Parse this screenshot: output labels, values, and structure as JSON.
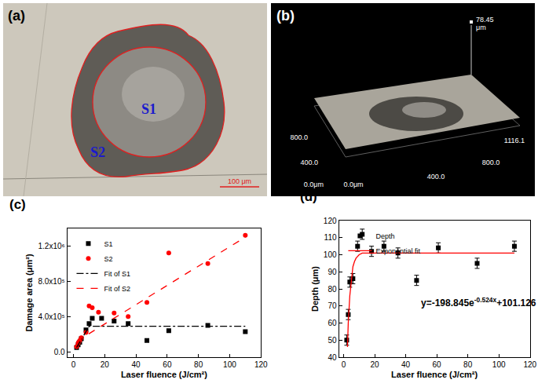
{
  "image_panels": [
    {
      "label": "(a)",
      "regions": [
        "S1",
        "S2"
      ],
      "scale_bar": "100 μm"
    },
    {
      "label": "(b)",
      "height_value": "78.45",
      "height_unit": "μm",
      "axis_labels": [
        "800.0",
        "400.0",
        "0.0μm",
        "0.0μm",
        "400.0",
        "800.0",
        "1116.1"
      ]
    }
  ],
  "chart_data": [
    {
      "type": "scatter",
      "label": "(c)",
      "x_label": "Laser fluence (J/cm²)",
      "y_label": "Damage area (μm²)",
      "xlim": [
        -4,
        120
      ],
      "xticks": [
        0,
        20,
        40,
        60,
        80,
        100,
        120
      ],
      "ylim": [
        -60000,
        1400000
      ],
      "yticks": [
        {
          "value": 0,
          "label": "0.0"
        },
        {
          "value": 400000,
          "label": "4.0x10⁵"
        },
        {
          "value": 800000,
          "label": "8.0x10⁵"
        },
        {
          "value": 1200000,
          "label": "1.2x10⁶"
        }
      ],
      "grid": false,
      "legend": "upper left",
      "series": [
        {
          "name": "S1",
          "type": "scatter",
          "color": "#000000",
          "marker": "square",
          "x": [
            2,
            3,
            4,
            5,
            8,
            10,
            12,
            18,
            26,
            35,
            47,
            61,
            86,
            110
          ],
          "values": [
            50000,
            80000,
            110000,
            150000,
            250000,
            320000,
            380000,
            380000,
            350000,
            320000,
            130000,
            240000,
            300000,
            230000
          ]
        },
        {
          "name": "S2",
          "type": "scatter",
          "color": "#ff0000",
          "marker": "circle",
          "x": [
            2,
            3,
            4,
            5,
            8,
            10,
            12,
            16,
            26,
            35,
            47,
            61,
            86,
            110
          ],
          "values": [
            60000,
            100000,
            130000,
            160000,
            220000,
            520000,
            500000,
            450000,
            440000,
            400000,
            560000,
            1120000,
            1000000,
            1320000
          ]
        },
        {
          "name": "Fit of S1",
          "type": "line",
          "color": "#000000",
          "line_style": "dashdot",
          "x": [
            2,
            10,
            110
          ],
          "values": [
            50000,
            290000,
            290000
          ]
        },
        {
          "name": "Fit of S2",
          "type": "line",
          "color": "#ff0000",
          "line_style": "dash",
          "x": [
            2,
            110
          ],
          "values": [
            120000,
            1300000
          ]
        }
      ]
    },
    {
      "type": "scatter",
      "label": "(d)",
      "x_label": "Laser fluence (J/cm²)",
      "y_label": "Depth (μm)",
      "xlim": [
        -3,
        120
      ],
      "xticks": [
        0,
        20,
        40,
        60,
        80,
        100,
        120
      ],
      "ylim": [
        40,
        120
      ],
      "yticks": [
        40,
        50,
        60,
        70,
        80,
        90,
        100,
        110,
        120
      ],
      "grid": false,
      "legend": "upper left",
      "equation": {
        "base": "y=-198.845e",
        "exponent": "-0.524x",
        "rest": "+101.126"
      },
      "series": [
        {
          "name": "Depth",
          "type": "scatter",
          "color": "#000000",
          "marker": "square",
          "x": [
            2,
            3,
            4,
            6,
            9,
            12,
            18,
            26,
            35,
            47,
            61,
            86,
            110
          ],
          "values": [
            50,
            65,
            84,
            86,
            105,
            112,
            102,
            105,
            101,
            85,
            104,
            95,
            105
          ],
          "errors": [
            3,
            3,
            3,
            3,
            3,
            3,
            3,
            3,
            3,
            3,
            3,
            3,
            3
          ]
        },
        {
          "name": "Exponential fit",
          "type": "line",
          "color": "#ff0000",
          "line_style": "solid",
          "x": [
            2.5,
            3,
            4,
            5,
            6,
            7,
            8,
            10,
            12,
            15,
            20,
            110
          ],
          "values": [
            46,
            60,
            76,
            86,
            93,
            96,
            98,
            100,
            101,
            101,
            101,
            101
          ]
        }
      ]
    }
  ]
}
